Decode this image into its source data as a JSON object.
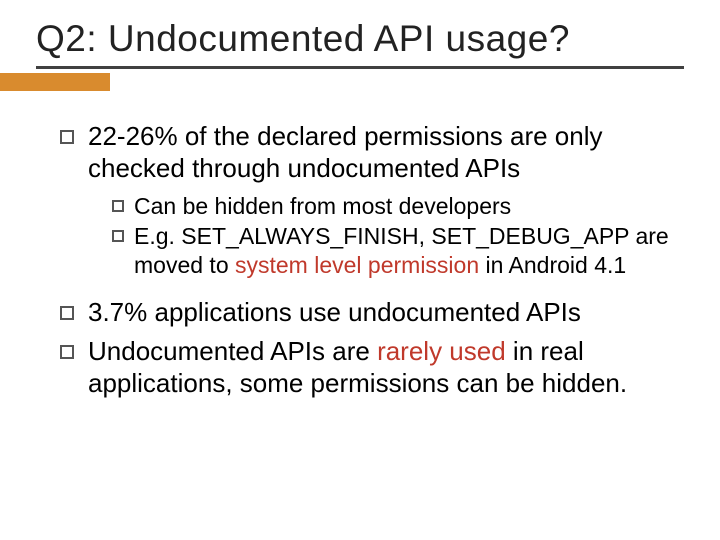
{
  "slide": {
    "title": "Q2: Undocumented API usage?",
    "accent_color": "#d98b2e",
    "highlight_color": "#c0392b",
    "bg_color": "#ffffff",
    "text_color": "#000000",
    "title_font_size": 37,
    "body_font_size": 26,
    "sub_font_size": 23,
    "bullets": [
      {
        "pre": "22-26% of the declared permissions are only checked through undocumented APIs",
        "hi": "",
        "post": "",
        "sub": [
          {
            "pre": "Can be hidden from most developers",
            "hi": "",
            "post": ""
          },
          {
            "pre": "E.g. SET_ALWAYS_FINISH, SET_DEBUG_APP are moved to ",
            "hi": "system level permission",
            "post": " in Android 4.1"
          }
        ]
      },
      {
        "pre": "3.7% applications use undocumented APIs",
        "hi": "",
        "post": "",
        "sub": []
      },
      {
        "pre": "Undocumented APIs are ",
        "hi": "rarely used",
        "post": " in real applications, some permissions can be hidden.",
        "sub": []
      }
    ]
  }
}
